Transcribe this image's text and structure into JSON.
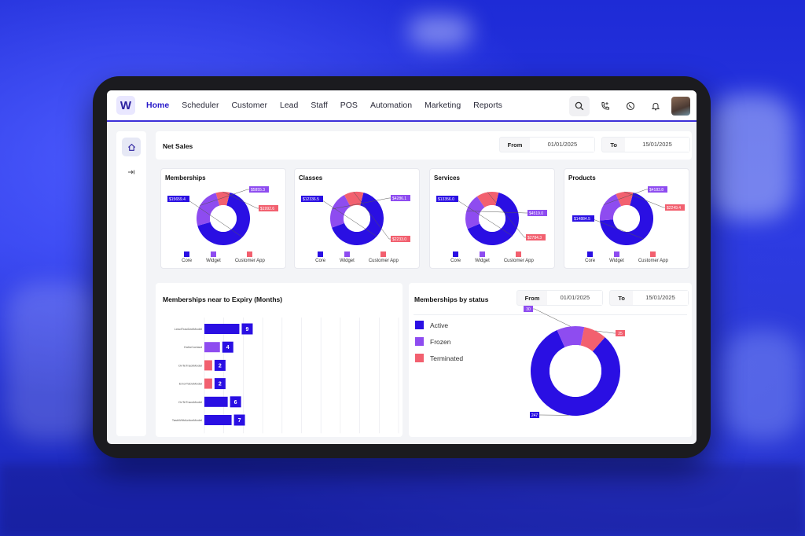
{
  "nav": {
    "logo": "W",
    "items": [
      "Home",
      "Scheduler",
      "Customer",
      "Lead",
      "Staff",
      "POS",
      "Automation",
      "Marketing",
      "Reports"
    ],
    "active": "Home"
  },
  "top_actions": [
    "search-icon",
    "phone-icon",
    "whatsapp-icon",
    "bell-icon",
    "avatar"
  ],
  "net_sales": {
    "title": "Net Sales",
    "from_label": "From",
    "from_value": "01/01/2025",
    "to_label": "To",
    "to_value": "15/01/2025"
  },
  "colors": {
    "core": "#2a0fe3",
    "widget": "#8e4cf0",
    "customer_app": "#f2606f",
    "accent": "#2617c9"
  },
  "legend": {
    "core": "Core",
    "widget": "Widget",
    "customer_app": "Customer App"
  },
  "cards": [
    {
      "title": "Memberships",
      "labels": [
        "$15659.4",
        "$5855.3",
        "$1992.6"
      ]
    },
    {
      "title": "Classes",
      "labels": [
        "$4286.1",
        "$2233.0",
        "$12336.5"
      ]
    },
    {
      "title": "Services",
      "labels": [
        "$13356.0",
        "$2784.3",
        "$4519.0"
      ]
    },
    {
      "title": "Products",
      "labels": [
        "$2249.4",
        "$4183.8",
        "$14884.5"
      ]
    }
  ],
  "expiry": {
    "title": "Memberships near to Expiry (Months)"
  },
  "status": {
    "title": "Memberships by status",
    "from_label": "From",
    "from_value": "01/01/2025",
    "to_label": "To",
    "to_value": "15/01/2025",
    "legend": [
      "Active",
      "Frozen",
      "Terminated"
    ]
  },
  "chart_data": [
    {
      "type": "pie",
      "title": "Memberships",
      "categories": [
        "Core",
        "Widget",
        "Customer App"
      ],
      "values": [
        15659.4,
        5855.3,
        1992.6
      ],
      "labels": [
        "$15659.4",
        "$5855.3",
        "$1992.6"
      ]
    },
    {
      "type": "pie",
      "title": "Classes",
      "categories": [
        "Core",
        "Widget",
        "Customer App"
      ],
      "values": [
        12336.5,
        4286.1,
        2233.0
      ],
      "labels": [
        "$12336.5",
        "$4286.1",
        "$2233.0"
      ]
    },
    {
      "type": "pie",
      "title": "Services",
      "categories": [
        "Core",
        "Widget",
        "Customer App"
      ],
      "values": [
        13356.0,
        4519.0,
        2784.3
      ],
      "labels": [
        "$13356.0",
        "$4519.0",
        "$2784.3"
      ]
    },
    {
      "type": "pie",
      "title": "Products",
      "categories": [
        "Core",
        "Widget",
        "Customer App"
      ],
      "values": [
        14884.5,
        4183.8,
        2249.4
      ],
      "labels": [
        "$14884.5",
        "$4183.8",
        "$2249.4"
      ]
    },
    {
      "type": "bar",
      "orientation": "horizontal",
      "title": "Memberships near to Expiry (Months)",
      "categories": [
        "LeadTracDatrModel",
        "HolloContact",
        "OvTeTrackModel",
        "ErrorToDoModel",
        "OvTeTracsModel",
        "TaskWithActionModel"
      ],
      "values": [
        9,
        4,
        2,
        2,
        6,
        7
      ],
      "bar_colors": [
        "#2a0fe3",
        "#8e4cf0",
        "#f2606f",
        "#f2606f",
        "#2a0fe3",
        "#2a0fe3"
      ],
      "xticks": [
        0,
        5,
        10,
        15,
        20,
        25,
        30,
        35,
        40,
        45,
        50
      ],
      "xlim": [
        0,
        50
      ],
      "grid": true
    },
    {
      "type": "pie",
      "title": "Memberships by status",
      "categories": [
        "Active",
        "Frozen",
        "Terminated"
      ],
      "values": [
        247,
        30,
        25
      ],
      "labels": [
        "247",
        "30",
        "25"
      ]
    }
  ]
}
